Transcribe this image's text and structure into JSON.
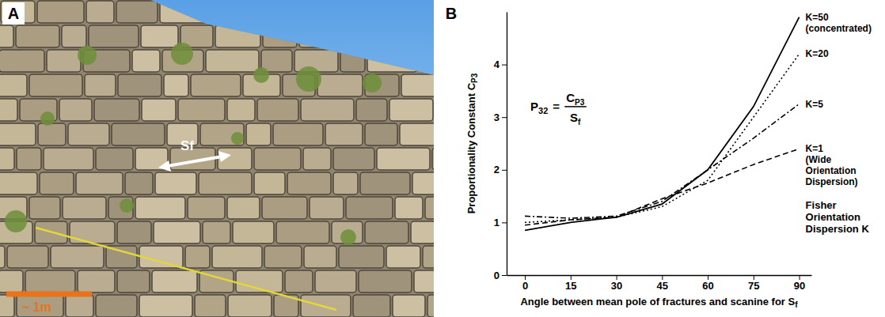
{
  "panel_a": {
    "panel": "A",
    "arrow_label": "Sf",
    "scale_label": "~ 1m"
  },
  "chart_data": {
    "type": "line",
    "panel": "B",
    "xlabel": "Angle between mean pole of fractures and scanine for S",
    "xlabel_sub": "f",
    "ylabel": "Proportionality Constant C",
    "ylabel_sub": "P3",
    "formula": {
      "left": "P",
      "left_sub": "32",
      "equals": "=",
      "numerator": "C",
      "numerator_sub": "P3",
      "denominator": "S",
      "denominator_sub": "f"
    },
    "legend_title": "Fisher Orientation Dispersion K",
    "x": [
      0,
      15,
      30,
      45,
      60,
      75,
      90
    ],
    "xlim": [
      -6,
      94
    ],
    "xticks": [
      0,
      15,
      30,
      45,
      60,
      75,
      90
    ],
    "ylim": [
      0,
      5
    ],
    "yticks": [
      0,
      1,
      2,
      3,
      4
    ],
    "grid": false,
    "series": [
      {
        "name": "K=50",
        "note": "(concentrated)",
        "color": "#000000",
        "line_style": "solid",
        "values": [
          0.85,
          1.0,
          1.1,
          1.35,
          2.0,
          3.2,
          4.9
        ]
      },
      {
        "name": "K=20",
        "color": "#000000",
        "line_style": "dotted",
        "values": [
          1.0,
          1.05,
          1.1,
          1.3,
          1.8,
          3.0,
          4.2
        ]
      },
      {
        "name": "K=5",
        "color": "#000000",
        "line_style": "dashdot",
        "values": [
          1.12,
          1.08,
          1.12,
          1.4,
          2.0,
          2.6,
          3.25
        ]
      },
      {
        "name": "K=1",
        "note": "(Wide Orientation Dispersion)",
        "color": "#000000",
        "line_style": "dashed",
        "values": [
          0.95,
          1.05,
          1.1,
          1.45,
          1.75,
          2.1,
          2.4
        ]
      }
    ]
  }
}
